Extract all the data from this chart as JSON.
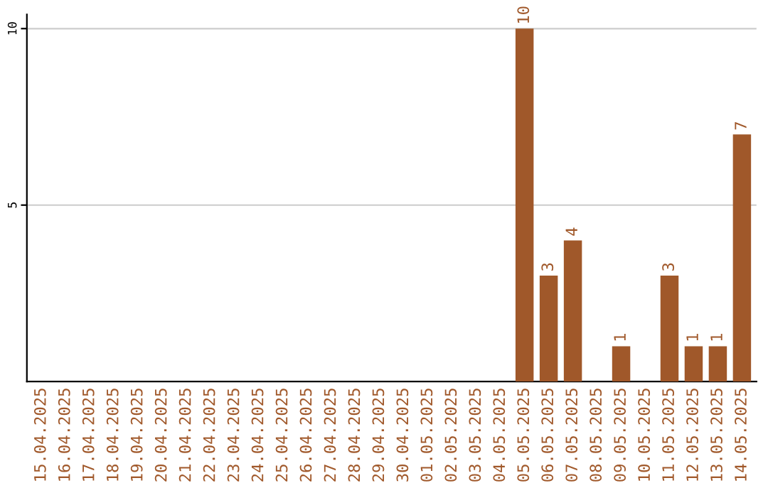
{
  "chart_data": {
    "type": "bar",
    "categories": [
      "15.04.2025",
      "16.04.2025",
      "17.04.2025",
      "18.04.2025",
      "19.04.2025",
      "20.04.2025",
      "21.04.2025",
      "22.04.2025",
      "23.04.2025",
      "24.04.2025",
      "25.04.2025",
      "26.04.2025",
      "27.04.2025",
      "28.04.2025",
      "29.04.2025",
      "30.04.2025",
      "01.05.2025",
      "02.05.2025",
      "03.05.2025",
      "04.05.2025",
      "05.05.2025",
      "06.05.2025",
      "07.05.2025",
      "08.05.2025",
      "09.05.2025",
      "10.05.2025",
      "11.05.2025",
      "12.05.2025",
      "13.05.2025",
      "14.05.2025"
    ],
    "values": [
      0,
      0,
      0,
      0,
      0,
      0,
      0,
      0,
      0,
      0,
      0,
      0,
      0,
      0,
      0,
      0,
      0,
      0,
      0,
      0,
      10,
      3,
      4,
      0,
      1,
      0,
      3,
      1,
      1,
      7
    ],
    "value_labels": [
      null,
      null,
      null,
      null,
      null,
      null,
      null,
      null,
      null,
      null,
      null,
      null,
      null,
      null,
      null,
      null,
      null,
      null,
      null,
      null,
      "10",
      "3",
      "4",
      null,
      "1",
      null,
      "3",
      "1",
      "1",
      "7"
    ],
    "color": "#a0582a",
    "ylim": [
      0,
      10.4
    ],
    "yticks": [
      5,
      10
    ],
    "grid": "y"
  }
}
